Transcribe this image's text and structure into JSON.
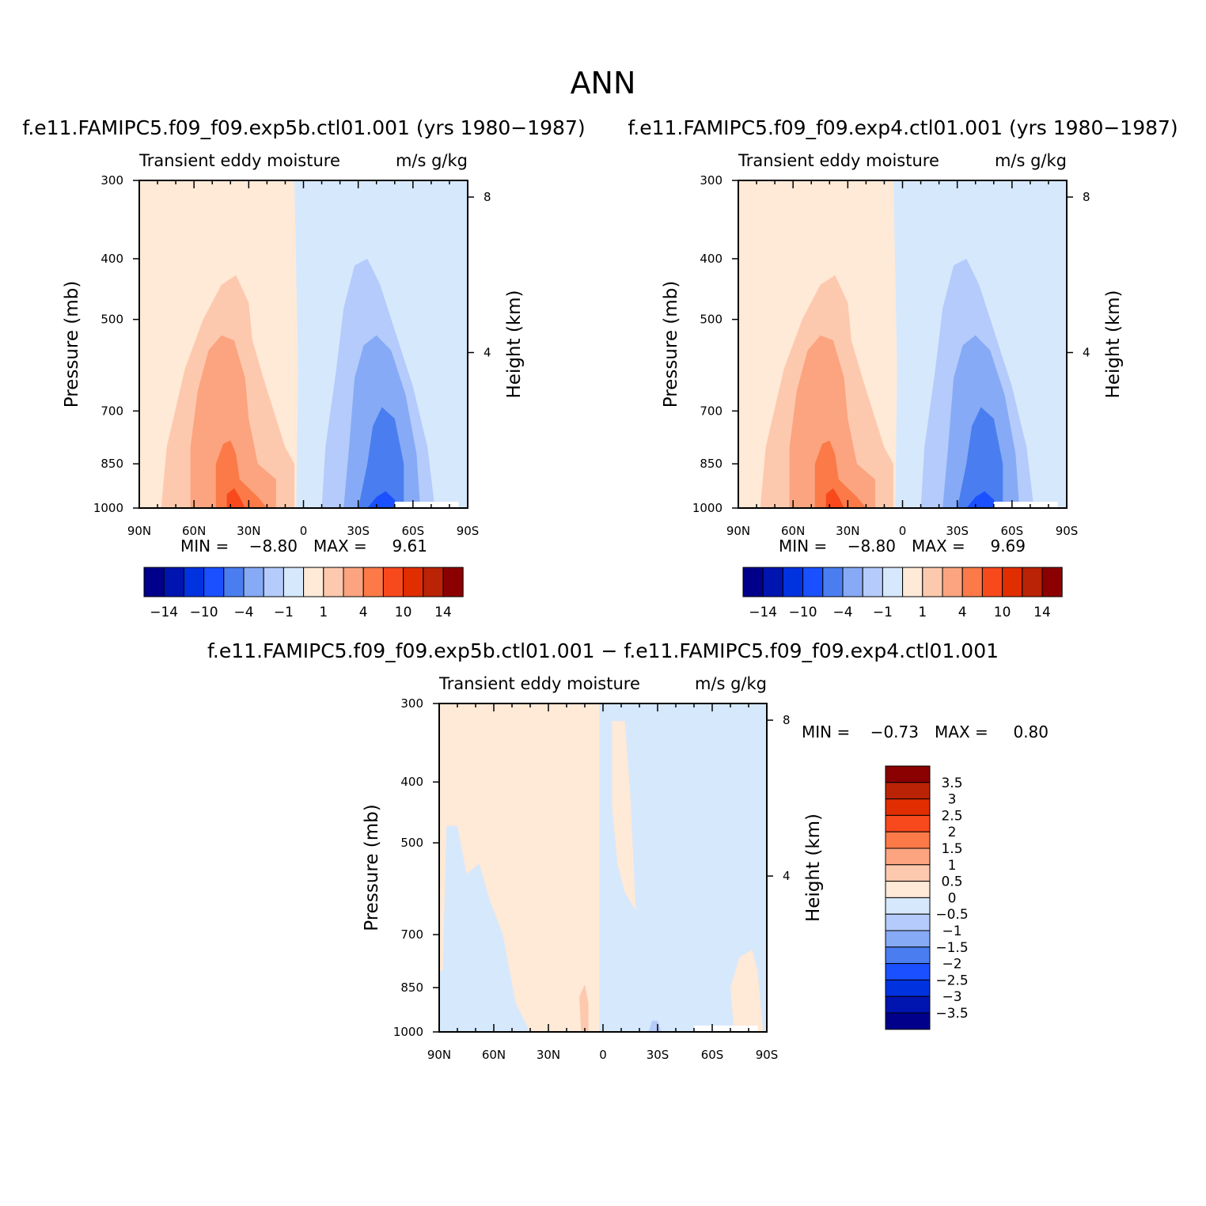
{
  "figure_title": "ANN",
  "chart_data": [
    {
      "type": "heatmap",
      "case_title": "f.e11.FAMIPC5.f09_f09.exp5b.ctl01.001 (yrs 1980−1987)",
      "title": "Transient eddy moisture",
      "units": "m/s  g/kg",
      "ylabel": "Pressure (mb)",
      "ylabel_right": "Height (km)",
      "x_ticks": [
        "90N",
        "60N",
        "30N",
        "0",
        "30S",
        "60S",
        "90S"
      ],
      "y_ticks": [
        "300",
        "400",
        "500",
        "700",
        "850",
        "1000"
      ],
      "y_right_ticks": [
        "8",
        "4"
      ],
      "ylim": [
        1000,
        300
      ],
      "min_label": "MIN =",
      "min_value": "−8.80",
      "max_label": "MAX =",
      "max_value": "9.61",
      "colorbar_labels": [
        "−14",
        "−10",
        "−4",
        "−1",
        "1",
        "4",
        "10",
        "14"
      ]
    },
    {
      "type": "heatmap",
      "case_title": "f.e11.FAMIPC5.f09_f09.exp4.ctl01.001 (yrs 1980−1987)",
      "title": "Transient eddy moisture",
      "units": "m/s  g/kg",
      "ylabel": "Pressure (mb)",
      "ylabel_right": "Height (km)",
      "x_ticks": [
        "90N",
        "60N",
        "30N",
        "0",
        "30S",
        "60S",
        "90S"
      ],
      "y_ticks": [
        "300",
        "400",
        "500",
        "700",
        "850",
        "1000"
      ],
      "y_right_ticks": [
        "8",
        "4"
      ],
      "ylim": [
        1000,
        300
      ],
      "min_label": "MIN =",
      "min_value": "−8.80",
      "max_label": "MAX =",
      "max_value": "9.69",
      "colorbar_labels": [
        "−14",
        "−10",
        "−4",
        "−1",
        "1",
        "4",
        "10",
        "14"
      ]
    },
    {
      "type": "heatmap",
      "case_title": "f.e11.FAMIPC5.f09_f09.exp5b.ctl01.001 − f.e11.FAMIPC5.f09_f09.exp4.ctl01.001",
      "title": "Transient eddy moisture",
      "units": "m/s  g/kg",
      "ylabel": "Pressure (mb)",
      "ylabel_right": "Height (km)",
      "x_ticks": [
        "90N",
        "60N",
        "30N",
        "0",
        "30S",
        "60S",
        "90S"
      ],
      "y_ticks": [
        "300",
        "400",
        "500",
        "700",
        "850",
        "1000"
      ],
      "y_right_ticks": [
        "8",
        "4"
      ],
      "ylim": [
        1000,
        300
      ],
      "min_label": "MIN =",
      "min_value": "−0.73",
      "max_label": "MAX =",
      "max_value": "0.80",
      "colorbar_labels": [
        "3.5",
        "3",
        "2.5",
        "2",
        "1.5",
        "1",
        "0.5",
        "0",
        "−0.5",
        "−1",
        "−1.5",
        "−2",
        "−2.5",
        "−3",
        "−3.5"
      ]
    }
  ],
  "colors": {
    "palette16": [
      "#00008a",
      "#0014b0",
      "#0032e0",
      "#1a50ff",
      "#4a7ef0",
      "#86aaf5",
      "#b4cbfb",
      "#d6e8fc",
      "#ffe9d7",
      "#fdc9ae",
      "#fba47f",
      "#fb7a48",
      "#f8491d",
      "#e02e00",
      "#ba2305",
      "#8b0000"
    ]
  }
}
